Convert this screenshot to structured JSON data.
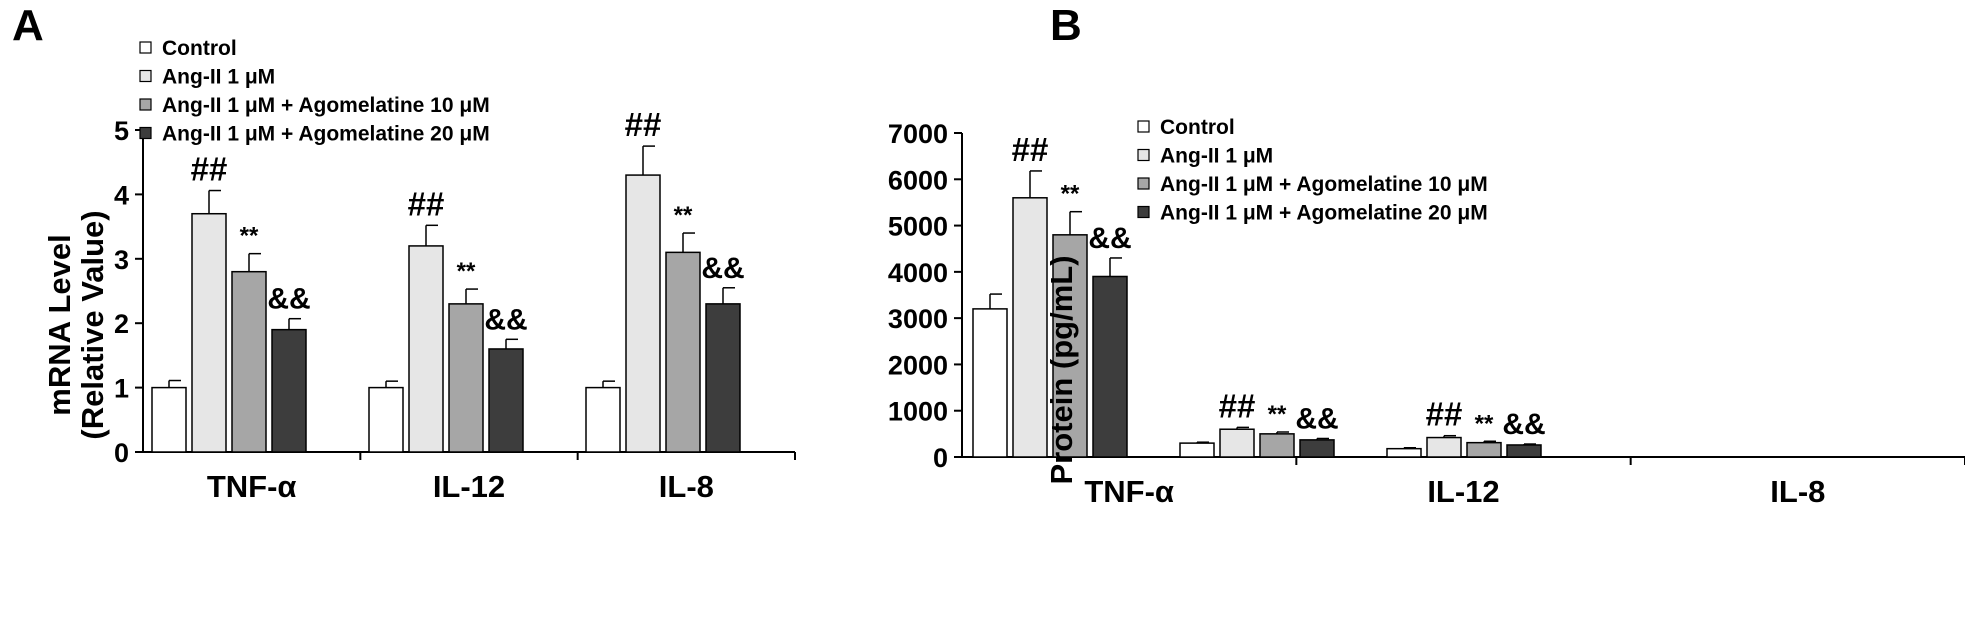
{
  "figure": {
    "panels": [
      "A",
      "B"
    ]
  },
  "chart_data": [
    {
      "panel": "A",
      "type": "bar",
      "categories": [
        "TNF-α",
        "IL-12",
        "IL-8"
      ],
      "ylabel_line1": "mRNA Level",
      "ylabel_line2": "(Relative Value)",
      "ylim": [
        0,
        5
      ],
      "yticks": [
        0,
        1,
        2,
        3,
        4,
        5
      ],
      "grid": false,
      "legend_position": "top-left",
      "series": [
        {
          "name": "Control",
          "color": "#ffffff",
          "values": [
            1.0,
            1.0,
            1.0
          ],
          "errors": [
            0.11,
            0.1,
            0.1
          ],
          "annotations": [
            "",
            "",
            ""
          ]
        },
        {
          "name": "Ang-II  1 μM",
          "color": "#e6e6e6",
          "values": [
            3.7,
            3.2,
            4.3
          ],
          "errors": [
            0.36,
            0.32,
            0.45
          ],
          "annotations": [
            "##",
            "##",
            "##"
          ]
        },
        {
          "name": "Ang-II  1 μM + Agomelatine 10 μM",
          "color": "#a6a6a6",
          "values": [
            2.8,
            2.3,
            3.1
          ],
          "errors": [
            0.28,
            0.23,
            0.3
          ],
          "annotations": [
            "**",
            "**",
            "**"
          ]
        },
        {
          "name": "Ang-II  1 μM + Agomelatine 20 μM",
          "color": "#3d3d3d",
          "values": [
            1.9,
            1.6,
            2.3
          ],
          "errors": [
            0.17,
            0.15,
            0.25
          ],
          "annotations": [
            "&&",
            "&&",
            "&&"
          ]
        }
      ]
    },
    {
      "panel": "B",
      "type": "bar",
      "categories": [
        "TNF-α",
        "IL-12",
        "IL-8"
      ],
      "ylabel": "Protein  (pg/mL)",
      "ylim": [
        0,
        7000
      ],
      "yticks": [
        0,
        1000,
        2000,
        3000,
        4000,
        5000,
        6000,
        7000
      ],
      "grid": false,
      "legend_position": "top-right",
      "series": [
        {
          "name": "Control",
          "color": "#ffffff",
          "values": [
            3200,
            300,
            180
          ],
          "errors": [
            320,
            20,
            20
          ],
          "annotations": [
            "",
            "",
            ""
          ]
        },
        {
          "name": "Ang-II  1 μM",
          "color": "#e6e6e6",
          "values": [
            5600,
            600,
            420
          ],
          "errors": [
            580,
            40,
            40
          ],
          "annotations": [
            "##",
            "##",
            "##"
          ]
        },
        {
          "name": "Ang-II  1 μM + Agomelatine 10 μM",
          "color": "#a6a6a6",
          "values": [
            4800,
            500,
            310
          ],
          "errors": [
            500,
            40,
            30
          ],
          "annotations": [
            "**",
            "**",
            "**"
          ]
        },
        {
          "name": "Ang-II  1 μM + Agomelatine 20 μM",
          "color": "#3d3d3d",
          "values": [
            3900,
            370,
            260
          ],
          "errors": [
            400,
            30,
            20
          ],
          "annotations": [
            "&&",
            "&&",
            "&&"
          ]
        }
      ]
    }
  ]
}
